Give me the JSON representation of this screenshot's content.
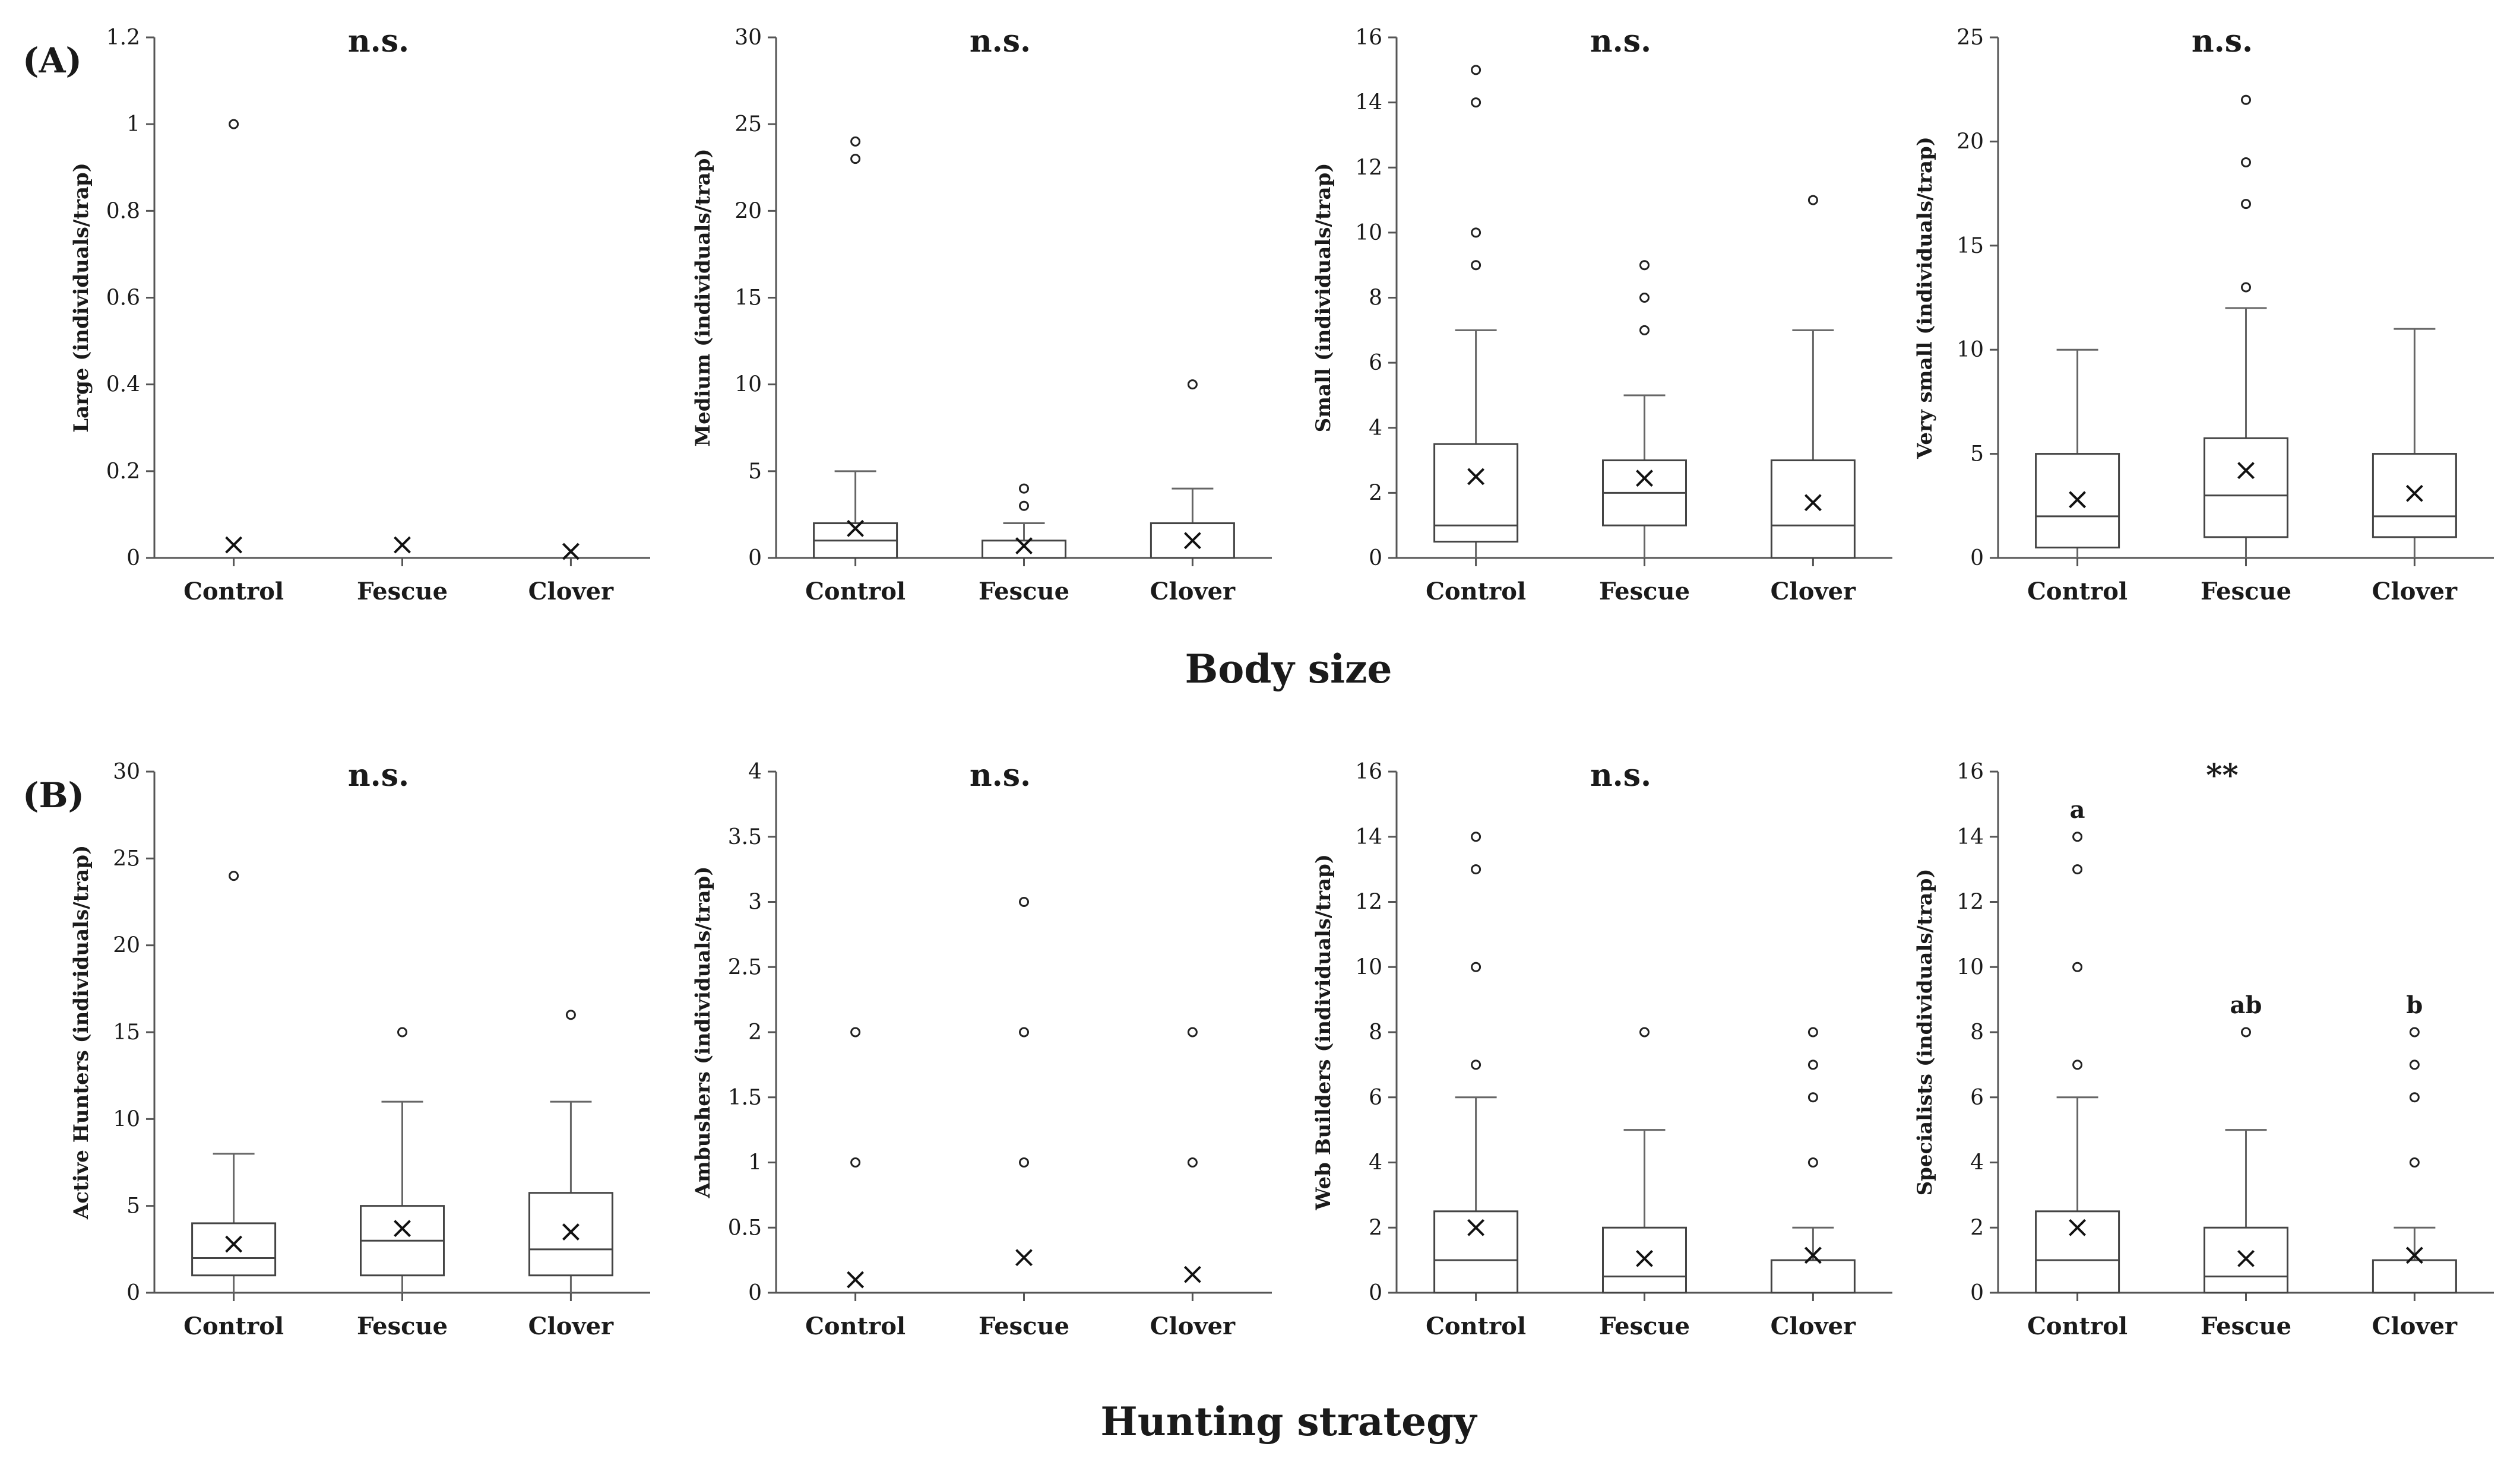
{
  "figure": {
    "panel_labels": [
      "(A)",
      "(B)"
    ],
    "row_titles": [
      "Body size",
      "Hunting strategy"
    ]
  },
  "chart_data": [
    {
      "type": "box",
      "row": 0,
      "ylabel": "Large (individuals/trap)",
      "significance": "n.s.",
      "ylim": [
        0,
        1.2
      ],
      "ticks": [
        0,
        0.2,
        0.4,
        0.6,
        0.8,
        1,
        1.2
      ],
      "categories": [
        "Control",
        "Fescue",
        "Clover"
      ],
      "boxes": [
        {
          "q1": 0,
          "median": 0,
          "q3": 0,
          "whisker_low": 0,
          "whisker_high": 0,
          "mean": 0.03,
          "outliers": [
            1
          ],
          "letter": ""
        },
        {
          "q1": 0,
          "median": 0,
          "q3": 0,
          "whisker_low": 0,
          "whisker_high": 0,
          "mean": 0.03,
          "outliers": [],
          "letter": ""
        },
        {
          "q1": 0,
          "median": 0,
          "q3": 0,
          "whisker_low": 0,
          "whisker_high": 0,
          "mean": 0.015,
          "outliers": [],
          "letter": ""
        }
      ]
    },
    {
      "type": "box",
      "row": 0,
      "ylabel": "Medium (individuals/trap)",
      "significance": "n.s.",
      "ylim": [
        0,
        30
      ],
      "ticks": [
        0,
        5,
        10,
        15,
        20,
        25,
        30
      ],
      "categories": [
        "Control",
        "Fescue",
        "Clover"
      ],
      "boxes": [
        {
          "q1": 0,
          "median": 1,
          "q3": 2,
          "whisker_low": 0,
          "whisker_high": 5,
          "mean": 1.7,
          "outliers": [
            23,
            24
          ],
          "letter": ""
        },
        {
          "q1": 0,
          "median": 0,
          "q3": 1,
          "whisker_low": 0,
          "whisker_high": 2,
          "mean": 0.7,
          "outliers": [
            3,
            4
          ],
          "letter": ""
        },
        {
          "q1": 0,
          "median": 0,
          "q3": 2,
          "whisker_low": 0,
          "whisker_high": 4,
          "mean": 1.0,
          "outliers": [
            10
          ],
          "letter": ""
        }
      ]
    },
    {
      "type": "box",
      "row": 0,
      "ylabel": "Small (individuals/trap)",
      "significance": "n.s.",
      "ylim": [
        0,
        16
      ],
      "ticks": [
        0,
        2,
        4,
        6,
        8,
        10,
        12,
        14,
        16
      ],
      "categories": [
        "Control",
        "Fescue",
        "Clover"
      ],
      "boxes": [
        {
          "q1": 0.5,
          "median": 1,
          "q3": 3.5,
          "whisker_low": 0,
          "whisker_high": 7,
          "mean": 2.5,
          "outliers": [
            9,
            10,
            14,
            15
          ],
          "letter": ""
        },
        {
          "q1": 1,
          "median": 2,
          "q3": 3,
          "whisker_low": 0,
          "whisker_high": 5,
          "mean": 2.45,
          "outliers": [
            7,
            8,
            9
          ],
          "letter": ""
        },
        {
          "q1": 0,
          "median": 1,
          "q3": 3,
          "whisker_low": 0,
          "whisker_high": 7,
          "mean": 1.7,
          "outliers": [
            11
          ],
          "letter": ""
        }
      ]
    },
    {
      "type": "box",
      "row": 0,
      "ylabel": "Very small (individuals/trap)",
      "significance": "n.s.",
      "ylim": [
        0,
        25
      ],
      "ticks": [
        0,
        5,
        10,
        15,
        20,
        25
      ],
      "categories": [
        "Control",
        "Fescue",
        "Clover"
      ],
      "boxes": [
        {
          "q1": 0.5,
          "median": 2,
          "q3": 5,
          "whisker_low": 0,
          "whisker_high": 10,
          "mean": 2.8,
          "outliers": [],
          "letter": ""
        },
        {
          "q1": 1,
          "median": 3,
          "q3": 5.75,
          "whisker_low": 0,
          "whisker_high": 12,
          "mean": 4.2,
          "outliers": [
            13,
            17,
            19,
            22
          ],
          "letter": ""
        },
        {
          "q1": 1,
          "median": 2,
          "q3": 5,
          "whisker_low": 0,
          "whisker_high": 11,
          "mean": 3.1,
          "outliers": [],
          "letter": ""
        }
      ]
    },
    {
      "type": "box",
      "row": 1,
      "ylabel": "Active Hunters (individuals/trap)",
      "significance": "n.s.",
      "ylim": [
        0,
        30
      ],
      "ticks": [
        0,
        5,
        10,
        15,
        20,
        25,
        30
      ],
      "categories": [
        "Control",
        "Fescue",
        "Clover"
      ],
      "boxes": [
        {
          "q1": 1,
          "median": 2,
          "q3": 4,
          "whisker_low": 0,
          "whisker_high": 8,
          "mean": 2.8,
          "outliers": [
            24
          ],
          "letter": ""
        },
        {
          "q1": 1,
          "median": 3,
          "q3": 5,
          "whisker_low": 0,
          "whisker_high": 11,
          "mean": 3.7,
          "outliers": [
            15
          ],
          "letter": ""
        },
        {
          "q1": 1,
          "median": 2.5,
          "q3": 5.75,
          "whisker_low": 0,
          "whisker_high": 11,
          "mean": 3.5,
          "outliers": [
            16
          ],
          "letter": ""
        }
      ]
    },
    {
      "type": "box",
      "row": 1,
      "ylabel": "Ambushers (individuals/trap)",
      "significance": "n.s.",
      "ylim": [
        0,
        4
      ],
      "ticks": [
        0,
        0.5,
        1,
        1.5,
        2,
        2.5,
        3,
        3.5,
        4
      ],
      "categories": [
        "Control",
        "Fescue",
        "Clover"
      ],
      "boxes": [
        {
          "q1": 0,
          "median": 0,
          "q3": 0,
          "whisker_low": 0,
          "whisker_high": 0,
          "mean": 0.1,
          "outliers": [
            1,
            2
          ],
          "letter": ""
        },
        {
          "q1": 0,
          "median": 0,
          "q3": 0,
          "whisker_low": 0,
          "whisker_high": 0,
          "mean": 0.27,
          "outliers": [
            1,
            2,
            3
          ],
          "letter": ""
        },
        {
          "q1": 0,
          "median": 0,
          "q3": 0,
          "whisker_low": 0,
          "whisker_high": 0,
          "mean": 0.14,
          "outliers": [
            1,
            2
          ],
          "letter": ""
        }
      ]
    },
    {
      "type": "box",
      "row": 1,
      "ylabel": "Web Builders (individuals/trap)",
      "significance": "n.s.",
      "ylim": [
        0,
        16
      ],
      "ticks": [
        0,
        2,
        4,
        6,
        8,
        10,
        12,
        14,
        16
      ],
      "categories": [
        "Control",
        "Fescue",
        "Clover"
      ],
      "boxes": [
        {
          "q1": 0,
          "median": 1,
          "q3": 2.5,
          "whisker_low": 0,
          "whisker_high": 6,
          "mean": 2.0,
          "outliers": [
            7,
            10,
            13,
            14
          ],
          "letter": ""
        },
        {
          "q1": 0,
          "median": 0.5,
          "q3": 2,
          "whisker_low": 0,
          "whisker_high": 5,
          "mean": 1.05,
          "outliers": [
            8
          ],
          "letter": ""
        },
        {
          "q1": 0,
          "median": 0,
          "q3": 1,
          "whisker_low": 0,
          "whisker_high": 2,
          "mean": 1.15,
          "outliers": [
            4,
            6,
            7,
            8
          ],
          "letter": ""
        }
      ]
    },
    {
      "type": "box",
      "row": 1,
      "ylabel": "Specialists (individuals/trap)",
      "significance": "**",
      "ylim": [
        0,
        16
      ],
      "ticks": [
        0,
        2,
        4,
        6,
        8,
        10,
        12,
        14,
        16
      ],
      "categories": [
        "Control",
        "Fescue",
        "Clover"
      ],
      "boxes": [
        {
          "q1": 0,
          "median": 1,
          "q3": 2.5,
          "whisker_low": 0,
          "whisker_high": 6,
          "mean": 2.0,
          "outliers": [
            7,
            10,
            13,
            14
          ],
          "letter": "a"
        },
        {
          "q1": 0,
          "median": 0.5,
          "q3": 2,
          "whisker_low": 0,
          "whisker_high": 5,
          "mean": 1.05,
          "outliers": [
            8
          ],
          "letter": "ab"
        },
        {
          "q1": 0,
          "median": 0,
          "q3": 1,
          "whisker_low": 0,
          "whisker_high": 2,
          "mean": 1.15,
          "outliers": [
            4,
            6,
            7,
            8
          ],
          "letter": "b"
        }
      ]
    }
  ]
}
